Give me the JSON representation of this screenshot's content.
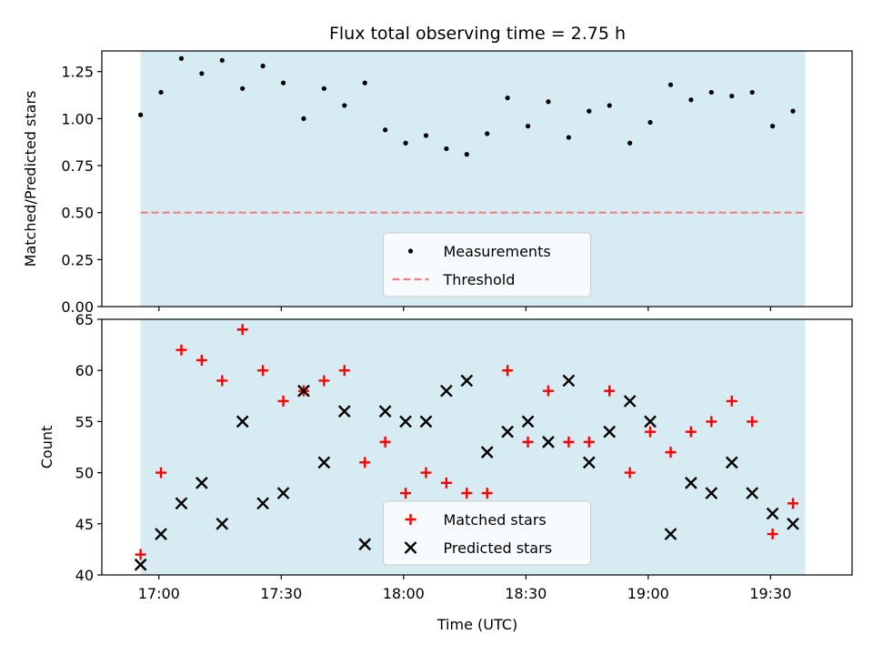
{
  "chart_data": {
    "type": "scatter",
    "title": "Flux total observing time = 2.75 h",
    "xlabel": "Time (UTC)",
    "x_tick_labels": [
      "17:00",
      "17:30",
      "18:00",
      "18:30",
      "19:00",
      "19:30"
    ],
    "x_tick_minutes": [
      1020,
      1050,
      1080,
      1110,
      1140,
      1170
    ],
    "xlim_minutes": [
      1006,
      1190
    ],
    "shaded_span_minutes": [
      1015.5,
      1178.5
    ],
    "shade_color": "#add8e6",
    "x_minutes": [
      1015.5,
      1020.5,
      1025.5,
      1030.5,
      1035.5,
      1040.5,
      1045.5,
      1050.5,
      1055.5,
      1060.5,
      1065.5,
      1070.5,
      1075.5,
      1080.5,
      1085.5,
      1090.5,
      1095.5,
      1100.5,
      1105.5,
      1110.5,
      1115.5,
      1120.5,
      1125.5,
      1130.5,
      1135.5,
      1140.5,
      1145.5,
      1150.5,
      1155.5,
      1160.5,
      1165.5,
      1170.5,
      1175.5
    ],
    "panels": [
      {
        "ylabel": "Matched/Predicted stars",
        "ylim": [
          0,
          1.36
        ],
        "y_ticks": [
          "0.00",
          "0.25",
          "0.50",
          "0.75",
          "1.00",
          "1.25"
        ],
        "series": [
          {
            "name": "Measurements",
            "marker": "dot",
            "color": "#000000",
            "values": [
              1.02,
              1.14,
              1.32,
              1.24,
              1.31,
              1.16,
              1.28,
              1.19,
              1.0,
              1.16,
              1.07,
              1.19,
              0.94,
              0.87,
              0.91,
              0.84,
              0.81,
              0.92,
              1.11,
              0.96,
              1.09,
              0.9,
              1.04,
              1.07,
              0.87,
              0.98,
              1.18,
              1.1,
              1.14,
              1.12,
              1.14,
              0.96,
              1.04
            ]
          }
        ],
        "reference_line": {
          "name": "Threshold",
          "value": 0.5,
          "color": "#f08080",
          "style": "dashed"
        },
        "legend_position": "lower-center"
      },
      {
        "ylabel": "Count",
        "ylim": [
          40,
          65
        ],
        "y_ticks": [
          "40",
          "45",
          "50",
          "55",
          "60",
          "65"
        ],
        "series": [
          {
            "name": "Matched stars",
            "marker": "plus",
            "color": "#ff0000",
            "values": [
              42,
              50,
              62,
              61,
              59,
              64,
              60,
              57,
              58,
              59,
              60,
              51,
              53,
              48,
              50,
              49,
              48,
              48,
              60,
              53,
              58,
              53,
              53,
              58,
              50,
              54,
              52,
              54,
              55,
              57,
              55,
              44,
              47
            ]
          },
          {
            "name": "Predicted stars",
            "marker": "x",
            "color": "#000000",
            "values": [
              41,
              44,
              47,
              49,
              45,
              55,
              47,
              48,
              58,
              51,
              56,
              43,
              56,
              55,
              55,
              58,
              59,
              52,
              54,
              55,
              53,
              59,
              51,
              54,
              57,
              55,
              44,
              49,
              48,
              51,
              48,
              46,
              45
            ]
          }
        ],
        "legend_position": "lower-center"
      }
    ]
  }
}
